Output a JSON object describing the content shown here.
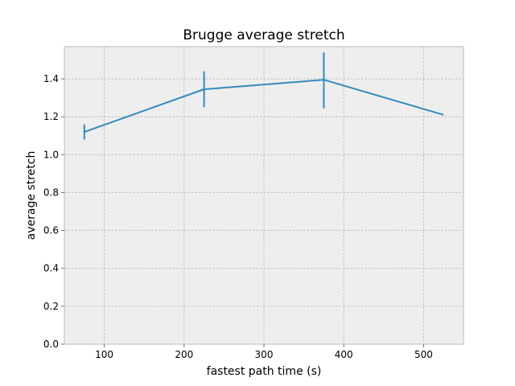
{
  "chart_data": {
    "type": "line",
    "title": "Brugge average stretch",
    "xlabel": "fastest path time (s)",
    "ylabel": "average stretch",
    "xlim": [
      50,
      550
    ],
    "ylim": [
      0,
      1.57
    ],
    "xticks": [
      100,
      200,
      300,
      400,
      500
    ],
    "yticks": [
      0.0,
      0.2,
      0.4,
      0.6,
      0.8,
      1.0,
      1.2,
      1.4
    ],
    "grid": true,
    "series": [
      {
        "color": "#348abd",
        "x": [
          75,
          225,
          375,
          525
        ],
        "y": [
          1.12,
          1.345,
          1.395,
          1.21
        ],
        "yerr_low": [
          1.08,
          1.25,
          1.245,
          1.21
        ],
        "yerr_high": [
          1.16,
          1.44,
          1.54,
          1.21
        ]
      }
    ],
    "colors": {
      "plot_background": "#eeeeee",
      "grid": "#b2b2b2",
      "frame": "#bcbcbc"
    }
  }
}
